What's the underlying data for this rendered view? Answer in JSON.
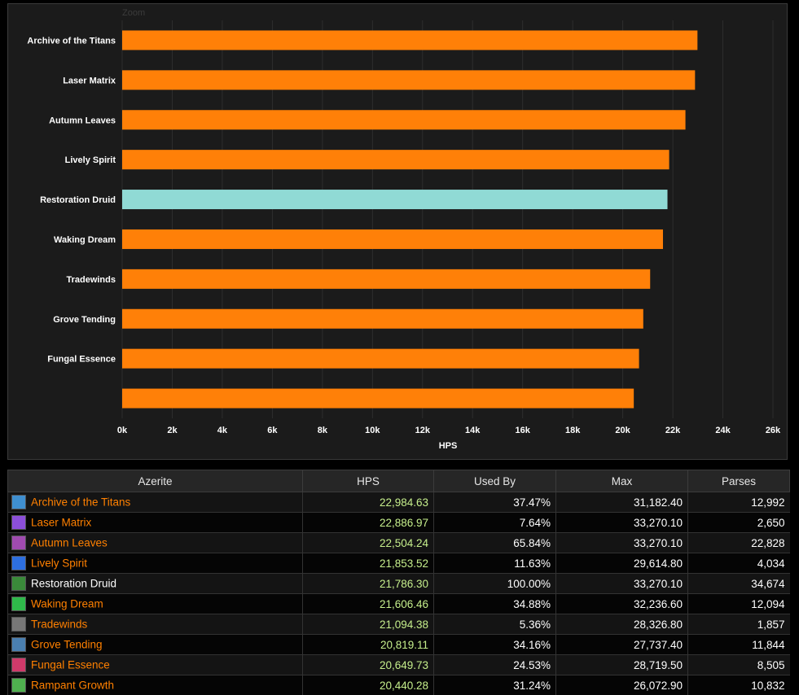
{
  "chart_data": {
    "type": "bar",
    "orientation": "horizontal",
    "zoom_label": "Zoom",
    "categories": [
      "Archive of the Titans",
      "Laser Matrix",
      "Autumn Leaves",
      "Lively Spirit",
      "Restoration Druid",
      "Waking Dream",
      "Tradewinds",
      "Grove Tending",
      "Fungal Essence",
      ""
    ],
    "values": [
      22984.63,
      22886.97,
      22504.24,
      21853.52,
      21786.3,
      21606.46,
      21094.38,
      20819.11,
      20649.73,
      20440.28
    ],
    "highlight_index": 4,
    "xlabel": "HPS",
    "xlim": [
      0,
      26000
    ],
    "xticks": [
      0,
      2000,
      4000,
      6000,
      8000,
      10000,
      12000,
      14000,
      16000,
      18000,
      20000,
      22000,
      24000,
      26000
    ],
    "xtick_labels": [
      "0k",
      "2k",
      "4k",
      "6k",
      "8k",
      "10k",
      "12k",
      "14k",
      "16k",
      "18k",
      "20k",
      "22k",
      "24k",
      "26k"
    ],
    "colors": {
      "bar": "#ff8008",
      "highlight": "#90dad5",
      "grid": "#2e2e2e",
      "background": "#1b1b1b"
    },
    "grid": true
  },
  "table": {
    "headers": [
      "Azerite",
      "HPS",
      "Used By",
      "Max",
      "Parses"
    ],
    "rows": [
      {
        "name": "Archive of the Titans",
        "hps": "22,984.63",
        "used_by": "37.47%",
        "max": "31,182.40",
        "parses": "12,992",
        "link": true,
        "icon": "archive-titans-icon",
        "icon_color": "#3f8fd0"
      },
      {
        "name": "Laser Matrix",
        "hps": "22,886.97",
        "used_by": "7.64%",
        "max": "33,270.10",
        "parses": "2,650",
        "link": true,
        "icon": "laser-matrix-icon",
        "icon_color": "#8c4fd9"
      },
      {
        "name": "Autumn Leaves",
        "hps": "22,504.24",
        "used_by": "65.84%",
        "max": "33,270.10",
        "parses": "22,828",
        "link": true,
        "icon": "autumn-leaves-icon",
        "icon_color": "#a04bb0"
      },
      {
        "name": "Lively Spirit",
        "hps": "21,853.52",
        "used_by": "11.63%",
        "max": "29,614.80",
        "parses": "4,034",
        "link": true,
        "icon": "lively-spirit-icon",
        "icon_color": "#2d6fe0"
      },
      {
        "name": "Restoration Druid",
        "hps": "21,786.30",
        "used_by": "100.00%",
        "max": "33,270.10",
        "parses": "34,674",
        "link": false,
        "icon": "restoration-druid-icon",
        "icon_color": "#3a8a3a"
      },
      {
        "name": "Waking Dream",
        "hps": "21,606.46",
        "used_by": "34.88%",
        "max": "32,236.60",
        "parses": "12,094",
        "link": true,
        "icon": "waking-dream-icon",
        "icon_color": "#2fb84a"
      },
      {
        "name": "Tradewinds",
        "hps": "21,094.38",
        "used_by": "5.36%",
        "max": "28,326.80",
        "parses": "1,857",
        "link": true,
        "icon": "tradewinds-icon",
        "icon_color": "#777777"
      },
      {
        "name": "Grove Tending",
        "hps": "20,819.11",
        "used_by": "34.16%",
        "max": "27,737.40",
        "parses": "11,844",
        "link": true,
        "icon": "grove-tending-icon",
        "icon_color": "#4a7fb0"
      },
      {
        "name": "Fungal Essence",
        "hps": "20,649.73",
        "used_by": "24.53%",
        "max": "28,719.50",
        "parses": "8,505",
        "link": true,
        "icon": "fungal-essence-icon",
        "icon_color": "#d03a6a"
      },
      {
        "name": "Rampant Growth",
        "hps": "20,440.28",
        "used_by": "31.24%",
        "max": "26,072.90",
        "parses": "10,832",
        "link": true,
        "icon": "rampant-growth-icon",
        "icon_color": "#4fb04f"
      }
    ]
  }
}
